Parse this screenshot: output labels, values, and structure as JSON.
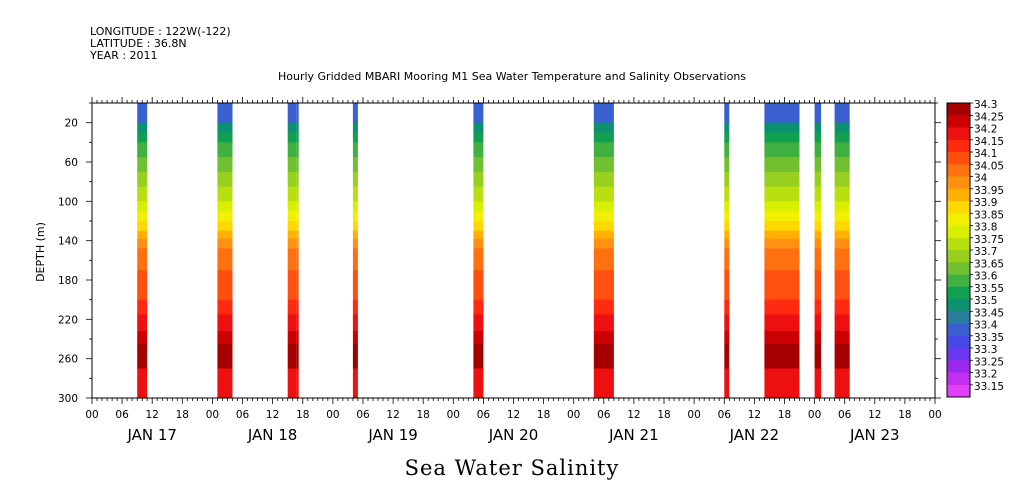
{
  "header": {
    "longitude": "LONGITUDE : 122W(-122)",
    "latitude": "LATITUDE : 36.8N",
    "year": "YEAR : 2011",
    "title": "Hourly Gridded MBARI Mooring M1 Sea Water Temperature and Salinity Observations"
  },
  "chart_data": {
    "type": "heatmap",
    "title": "Hourly Gridded MBARI Mooring M1 Sea Water Temperature and Salinity Observations",
    "variable_label": "Sea Water Salinity",
    "ylabel": "DEPTH (m)",
    "ylim": [
      300,
      0
    ],
    "y_ticks": [
      20,
      60,
      100,
      140,
      180,
      220,
      260,
      300
    ],
    "x_hour_ticks": [
      "00",
      "06",
      "12",
      "18",
      "00",
      "06",
      "12",
      "18",
      "00",
      "06",
      "12",
      "18",
      "00",
      "06",
      "12",
      "18",
      "00",
      "06",
      "12",
      "18",
      "00",
      "06",
      "12",
      "18",
      "00",
      "06",
      "12",
      "18",
      "00"
    ],
    "x_day_labels": [
      "JAN 17",
      "JAN 18",
      "JAN 19",
      "JAN 20",
      "JAN 21",
      "JAN 22",
      "JAN 23"
    ],
    "xlim_hours": [
      0,
      168
    ],
    "colorbar": {
      "levels": [
        "34.3",
        "34.25",
        "34.2",
        "34.15",
        "34.1",
        "34.05",
        "34",
        "33.95",
        "33.9",
        "33.85",
        "33.8",
        "33.75",
        "33.7",
        "33.65",
        "33.6",
        "33.55",
        "33.5",
        "33.45",
        "33.4",
        "33.35",
        "33.3",
        "33.25",
        "33.2",
        "33.15"
      ],
      "colors": [
        "#a50000",
        "#cc0000",
        "#ee1010",
        "#ff2a10",
        "#ff5010",
        "#ff7010",
        "#ff9010",
        "#ffb000",
        "#ffd800",
        "#f0f000",
        "#d8f000",
        "#b8e010",
        "#98d020",
        "#70c030",
        "#40b040",
        "#10a050",
        "#0c9070",
        "#2a7ea0",
        "#3a60d0",
        "#4848e8",
        "#6a38f0",
        "#9a28f0",
        "#c030f0",
        "#e040f8"
      ]
    },
    "bands": [
      {
        "t0": 9,
        "t1": 11,
        "bottom": 300
      },
      {
        "t0": 25,
        "t1": 28,
        "bottom": 300
      },
      {
        "t0": 39,
        "t1": 40.8,
        "bottom": 300
      },
      {
        "t0": 40.8,
        "t1": 41.2,
        "bottom": 300
      },
      {
        "t0": 52,
        "t1": 53,
        "bottom": 300
      },
      {
        "t0": 76,
        "t1": 78,
        "bottom": 300
      },
      {
        "t0": 100,
        "t1": 104,
        "bottom": 300
      },
      {
        "t0": 126,
        "t1": 127,
        "bottom": 300
      },
      {
        "t0": 134,
        "t1": 141,
        "bottom": 300
      },
      {
        "t0": 144,
        "t1": 145.3,
        "bottom": 300
      },
      {
        "t0": 148,
        "t1": 151,
        "bottom": 300
      }
    ],
    "profile_levels": [
      {
        "depth_top": 0,
        "depth_bottom": 20,
        "value": "33.4"
      },
      {
        "depth_top": 20,
        "depth_bottom": 30,
        "value": "33.5"
      },
      {
        "depth_top": 30,
        "depth_bottom": 40,
        "value": "33.55"
      },
      {
        "depth_top": 40,
        "depth_bottom": 55,
        "value": "33.6"
      },
      {
        "depth_top": 55,
        "depth_bottom": 70,
        "value": "33.65"
      },
      {
        "depth_top": 70,
        "depth_bottom": 85,
        "value": "33.7"
      },
      {
        "depth_top": 85,
        "depth_bottom": 100,
        "value": "33.75"
      },
      {
        "depth_top": 100,
        "depth_bottom": 110,
        "value": "33.8"
      },
      {
        "depth_top": 110,
        "depth_bottom": 120,
        "value": "33.85"
      },
      {
        "depth_top": 120,
        "depth_bottom": 130,
        "value": "33.9"
      },
      {
        "depth_top": 130,
        "depth_bottom": 138,
        "value": "33.95"
      },
      {
        "depth_top": 138,
        "depth_bottom": 148,
        "value": "34"
      },
      {
        "depth_top": 148,
        "depth_bottom": 170,
        "value": "34.05"
      },
      {
        "depth_top": 170,
        "depth_bottom": 200,
        "value": "34.1"
      },
      {
        "depth_top": 200,
        "depth_bottom": 215,
        "value": "34.15"
      },
      {
        "depth_top": 215,
        "depth_bottom": 232,
        "value": "34.2"
      },
      {
        "depth_top": 232,
        "depth_bottom": 245,
        "value": "34.25"
      },
      {
        "depth_top": 245,
        "depth_bottom": 270,
        "value": "34.3"
      },
      {
        "depth_top": 270,
        "depth_bottom": 300,
        "value": "34.2"
      }
    ]
  }
}
